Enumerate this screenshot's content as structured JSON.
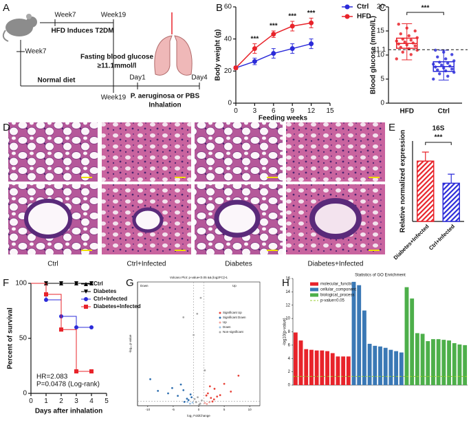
{
  "figure": {
    "panels": [
      "A",
      "B",
      "C",
      "D",
      "E",
      "F",
      "G",
      "H"
    ]
  },
  "diagram": {
    "hfd_start": "Week7",
    "hfd_end": "Week19",
    "hfd_label": "HFD Induces T2DM",
    "criterion": "Fasting blood glucose",
    "threshold": "≥11.1mmol/l",
    "normal_start": "Week7",
    "normal_label": "Normal diet",
    "normal_end": "Week19",
    "day_start": "Day1",
    "day_end": "Day4",
    "treatment": "P. aeruginosa or PBS",
    "route": "Inhalation"
  },
  "micrographs": {
    "labels": [
      "Ctrl",
      "Ctrl+Infected",
      "Diabetes",
      "Diabetes+Infected"
    ]
  },
  "chart_data": [
    {
      "type": "line",
      "x": [
        0,
        3,
        6,
        9,
        12
      ],
      "xlim": [
        0,
        15
      ],
      "xticks": [
        0,
        3,
        6,
        9,
        12,
        15
      ],
      "ylim": [
        0,
        60
      ],
      "yticks": [
        0,
        20,
        40,
        60
      ],
      "xlabel": "Feeding weeks",
      "ylabel": "Body weight (g)",
      "series": [
        {
          "name": "Ctrl",
          "color": "#2b2bd9",
          "values": [
            22,
            26,
            31,
            34,
            37
          ],
          "errors": [
            1,
            2,
            3,
            3,
            3
          ]
        },
        {
          "name": "HFD",
          "color": "#e8232a",
          "values": [
            22,
            34,
            43,
            48,
            50
          ],
          "errors": [
            1,
            3,
            2,
            3,
            3
          ]
        }
      ],
      "annotations": [
        {
          "x": 3,
          "text": "***"
        },
        {
          "x": 6,
          "text": "***"
        },
        {
          "x": 9,
          "text": "***"
        },
        {
          "x": 12,
          "text": "***"
        }
      ]
    },
    {
      "type": "box",
      "categories": [
        "HFD",
        "Ctrl"
      ],
      "ylim": [
        0,
        20
      ],
      "yticks": [
        0,
        5,
        10,
        15,
        20
      ],
      "ylabel": "Blood glucose (mmol/L)",
      "reference_line": 11.1,
      "significance": "***",
      "boxes": [
        {
          "color": "#e8232a",
          "min": 9,
          "q1": 11.4,
          "median": 12.4,
          "q3": 13.5,
          "max": 16.5,
          "points": [
            9.2,
            10.1,
            10.6,
            11.0,
            11.3,
            11.6,
            11.9,
            12.1,
            12.3,
            12.5,
            12.7,
            12.9,
            13.1,
            13.3,
            13.6,
            14.0,
            14.4,
            15.0,
            15.6,
            16.4
          ]
        },
        {
          "color": "#2b2bd9",
          "min": 4.8,
          "q1": 6.6,
          "median": 7.6,
          "q3": 8.6,
          "max": 11,
          "points": [
            5.0,
            5.6,
            6.1,
            6.4,
            6.7,
            6.9,
            7.1,
            7.3,
            7.5,
            7.7,
            7.9,
            8.1,
            8.3,
            8.5,
            8.8,
            9.2,
            9.6,
            10.1,
            10.6,
            11.0
          ]
        }
      ]
    },
    {
      "type": "bar",
      "title": "16S",
      "ylabel": "Relative normalized expression",
      "categories": [
        "Diabetes+Infected",
        "Ctrl+Infected"
      ],
      "values": [
        6.0,
        3.8
      ],
      "errors": [
        0.9,
        0.9
      ],
      "colors": [
        "#e8232a",
        "#2b2bd9"
      ],
      "hatch": true,
      "ylim": [
        0,
        8
      ],
      "significance": "***"
    },
    {
      "type": "step",
      "x": [
        0,
        1,
        2,
        3,
        4
      ],
      "xlim": [
        0,
        5
      ],
      "xticks": [
        0,
        1,
        2,
        3,
        4,
        5
      ],
      "ylim": [
        0,
        100
      ],
      "yticks": [
        0,
        50,
        100
      ],
      "xlabel": "Days after inhalation",
      "ylabel": "Percent of survival",
      "series": [
        {
          "name": "Ctrl",
          "color": "#000000",
          "marker": "triangle-up",
          "values": [
            100,
            100,
            100,
            100,
            100
          ]
        },
        {
          "name": "Diabetes",
          "color": "#000000",
          "marker": "triangle-down",
          "values": [
            100,
            100,
            100,
            100,
            100
          ]
        },
        {
          "name": "Ctrl+Infected",
          "color": "#2b2bd9",
          "marker": "circle",
          "values": [
            100,
            85,
            70,
            60,
            60
          ]
        },
        {
          "name": "Diabetes+Infected",
          "color": "#e8232a",
          "marker": "square",
          "values": [
            100,
            90,
            58,
            20,
            20
          ]
        }
      ],
      "annotations": [
        "HR=2.083",
        "P=0.0478 (Log-rank)"
      ]
    },
    {
      "type": "scatter",
      "title": "Volcano Plot: p-value<0.05 && |log2FC|>1",
      "xlabel": "log₂ FoldChange",
      "ylabel": "-log₁₀ p-value",
      "xlim": [
        -12,
        12
      ],
      "xticks": [
        -10,
        -5,
        0,
        5,
        10
      ],
      "ylim": [
        0,
        35
      ],
      "cutoffs": {
        "x": [
          -1,
          1
        ],
        "y": 1.3
      },
      "series": [
        {
          "name": "Significant Up",
          "color": "#e8463c",
          "x": [
            1.8,
            2.4,
            3.1,
            2.7,
            4.2,
            5.0,
            3.6,
            6.3,
            2.2,
            7.8,
            1.5,
            3.0
          ],
          "values": [
            3.5,
            2.2,
            4.8,
            1.2,
            3.0,
            6.2,
            2.6,
            4.0,
            5.5,
            8.5,
            2.9,
            1.8
          ]
        },
        {
          "name": "Significant Down",
          "color": "#2f6fb0",
          "x": [
            -1.6,
            -2.3,
            -3.0,
            -2.8,
            -4.1,
            -5.2,
            -3.5,
            -6.0,
            -2.0,
            -8.0,
            -1.4,
            -9.5
          ],
          "values": [
            3.2,
            2.0,
            4.4,
            1.1,
            2.8,
            5.0,
            6.0,
            3.5,
            1.6,
            4.2,
            2.4,
            7.5
          ]
        },
        {
          "name": "Up",
          "color": "#f2a39c",
          "x": [
            1.2,
            1.6,
            2.1
          ],
          "values": [
            0.8,
            0.5,
            1.0
          ]
        },
        {
          "name": "Down",
          "color": "#9cc3e6",
          "x": [
            -1.2,
            -1.7,
            -2.2
          ],
          "values": [
            0.9,
            0.6,
            1.1
          ]
        },
        {
          "name": "Non-significant",
          "color": "#a8a8a8",
          "x": [
            -0.5,
            0.3,
            -0.2,
            0.6,
            0.1,
            -0.8,
            0.4,
            -0.3,
            -1.0,
            -3.0,
            1.2
          ],
          "values": [
            1.0,
            0.6,
            2.4,
            1.5,
            0.3,
            1.9,
            30.5,
            26.0,
            20.0,
            25.0,
            10.0
          ]
        }
      ],
      "annotations": [
        "Down",
        "Up"
      ]
    },
    {
      "type": "bar",
      "title": "Statistics of GO Enrichment",
      "ylabel": "-log10(p-value)",
      "ylim": [
        0,
        16
      ],
      "yticks": [
        0,
        2,
        4,
        6,
        8,
        10,
        12,
        14,
        16
      ],
      "threshold": 1.3,
      "threshold_label": "p-value=0.05",
      "series": [
        {
          "name": "molecular_function",
          "color": "#e8232a",
          "values": [
            7.9,
            6.7,
            5.4,
            5.3,
            5.2,
            5.2,
            5.1,
            4.8,
            4.3,
            4.3,
            4.3
          ]
        },
        {
          "name": "cellular_component",
          "color": "#3a78b5",
          "values": [
            15.5,
            15.0,
            11.2,
            6.2,
            5.9,
            5.8,
            5.6,
            5.3,
            5.1,
            4.9
          ]
        },
        {
          "name": "biological_process",
          "color": "#4daf4a",
          "values": [
            14.7,
            13.0,
            7.8,
            7.7,
            6.6,
            6.9,
            6.9,
            6.8,
            6.7,
            6.3,
            6.1,
            6.0
          ]
        }
      ]
    }
  ]
}
